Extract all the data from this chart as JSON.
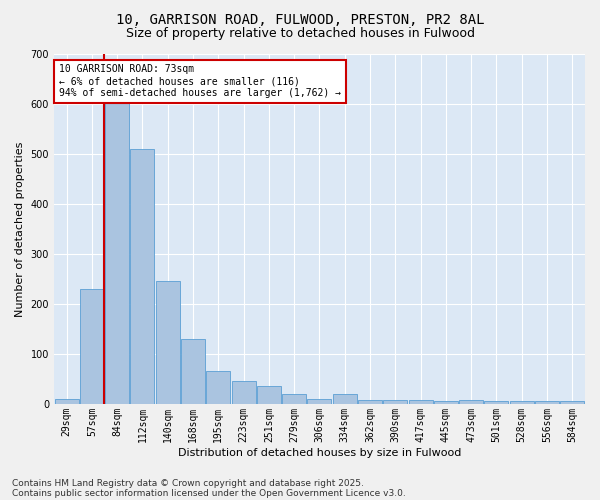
{
  "title1": "10, GARRISON ROAD, FULWOOD, PRESTON, PR2 8AL",
  "title2": "Size of property relative to detached houses in Fulwood",
  "xlabel": "Distribution of detached houses by size in Fulwood",
  "ylabel": "Number of detached properties",
  "bins": [
    29,
    57,
    84,
    112,
    140,
    168,
    195,
    223,
    251,
    279,
    306,
    334,
    362,
    390,
    417,
    445,
    473,
    501,
    528,
    556,
    584
  ],
  "counts": [
    10,
    230,
    610,
    510,
    245,
    130,
    65,
    45,
    35,
    20,
    10,
    20,
    8,
    8,
    8,
    5,
    8,
    5,
    5,
    5,
    5
  ],
  "bar_color": "#aac4e0",
  "bar_edge_color": "#5a9fd4",
  "property_bin_index": 1,
  "annotation_title": "10 GARRISON ROAD: 73sqm",
  "annotation_line1": "← 6% of detached houses are smaller (116)",
  "annotation_line2": "94% of semi-detached houses are larger (1,762) →",
  "annotation_box_color": "#ffffff",
  "annotation_border_color": "#cc0000",
  "vline_color": "#cc0000",
  "ylim": [
    0,
    700
  ],
  "yticks": [
    0,
    100,
    200,
    300,
    400,
    500,
    600,
    700
  ],
  "background_color": "#dce8f5",
  "fig_background": "#f0f0f0",
  "footer1": "Contains HM Land Registry data © Crown copyright and database right 2025.",
  "footer2": "Contains public sector information licensed under the Open Government Licence v3.0.",
  "title_fontsize": 10,
  "subtitle_fontsize": 9,
  "axis_label_fontsize": 8,
  "tick_fontsize": 7,
  "footer_fontsize": 6.5,
  "ann_fontsize": 7
}
